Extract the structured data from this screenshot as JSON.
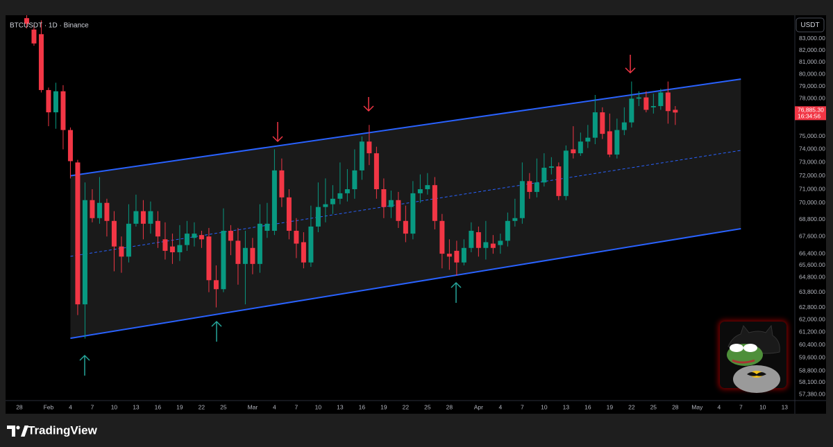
{
  "chart_data": {
    "type": "candlestick",
    "title": "BTCUSDT · 1D · Binance",
    "currency": "USDT",
    "log_scale": true,
    "grid": false,
    "up_color": "#089981",
    "down_color": "#f23645",
    "channel_color": "#2962ff",
    "last_price_label": "76,885.30",
    "countdown": "16:34:56",
    "x": [
      29,
      30,
      31,
      32,
      33,
      34,
      35,
      36,
      37,
      38,
      39,
      40,
      41,
      42,
      43,
      44,
      45,
      46,
      47,
      48,
      49,
      50,
      51,
      52,
      53,
      54,
      55,
      56,
      57,
      58,
      59,
      60,
      61,
      62,
      63,
      64,
      65,
      66,
      67,
      68,
      69,
      70,
      71,
      72,
      73,
      74,
      75,
      76,
      77,
      78,
      79,
      80,
      81,
      82,
      83,
      84,
      85,
      86,
      87,
      88,
      89,
      90,
      91,
      92,
      93,
      94,
      95,
      96,
      97,
      98,
      99,
      100,
      101,
      102,
      103,
      104,
      105,
      106,
      107,
      108,
      109,
      110,
      111,
      112,
      113,
      114,
      115,
      116,
      117,
      118
    ],
    "open": [
      84800,
      83800,
      83400,
      78700,
      76900,
      78600,
      75500,
      73000,
      63000,
      70200,
      68900,
      70000,
      68700,
      66900,
      66200,
      68500,
      69400,
      68500,
      68700,
      67400,
      66900,
      66500,
      67000,
      67500,
      67700,
      67600,
      64600,
      64000,
      68000,
      67300,
      65700,
      66800,
      65700,
      68000,
      68000,
      72400,
      70400,
      68000,
      67200,
      65800,
      68300,
      69700,
      69900,
      70300,
      70700,
      71000,
      72400,
      74600,
      73700,
      71000,
      69700,
      70200,
      68700,
      67800,
      70700,
      71000,
      71300,
      68700,
      66400,
      66600,
      65800,
      66800,
      67900,
      66800,
      67100,
      67000,
      67300,
      68700,
      68900,
      71600,
      70800,
      71500,
      72600,
      72700,
      70500,
      74000,
      73700,
      74600,
      74900,
      76900,
      75400,
      73600,
      75500,
      76100,
      78000,
      78100,
      77300,
      77400,
      78500,
      77100
    ],
    "high": [
      85500,
      84200,
      84600,
      78900,
      79300,
      79100,
      75700,
      73200,
      71500,
      71000,
      71900,
      70300,
      69400,
      67600,
      69900,
      70600,
      70200,
      70100,
      69400,
      68600,
      67800,
      68400,
      68700,
      68600,
      68000,
      68200,
      65600,
      69600,
      68400,
      68200,
      68000,
      67500,
      69900,
      70000,
      74000,
      73300,
      71000,
      68900,
      67900,
      69800,
      71500,
      71800,
      71300,
      73000,
      72500,
      74000,
      75000,
      75900,
      74200,
      71800,
      70900,
      70800,
      69800,
      71600,
      72100,
      72200,
      71900,
      69200,
      67400,
      67300,
      67400,
      68600,
      68300,
      68700,
      67700,
      67800,
      69300,
      70300,
      73000,
      72200,
      73300,
      73700,
      73400,
      73000,
      74300,
      75800,
      75300,
      75900,
      78300,
      77300,
      76800,
      76400,
      77300,
      79400,
      78600,
      78600,
      78400,
      78800,
      79400,
      77400
    ],
    "low": [
      83900,
      82400,
      78500,
      75800,
      75600,
      74000,
      71800,
      62300,
      60800,
      68600,
      68500,
      67600,
      65200,
      65100,
      65800,
      68300,
      67400,
      67800,
      66800,
      66000,
      65700,
      65900,
      66600,
      66900,
      66800,
      63800,
      62800,
      63800,
      66300,
      64300,
      63000,
      65000,
      65100,
      67500,
      67700,
      69700,
      67400,
      66100,
      65400,
      65500,
      67900,
      68600,
      69200,
      69900,
      70100,
      70300,
      71700,
      72800,
      70300,
      68900,
      68900,
      68200,
      67200,
      67400,
      70000,
      70600,
      68100,
      65400,
      65300,
      64900,
      65600,
      66500,
      66200,
      66000,
      66400,
      66400,
      66900,
      68300,
      68500,
      70300,
      70400,
      71200,
      72100,
      70200,
      70200,
      73300,
      73500,
      74100,
      74400,
      74800,
      73400,
      73300,
      75100,
      75700,
      77400,
      76900,
      76800,
      77100,
      76000,
      75900
    ],
    "close": [
      84300,
      82600,
      78700,
      76900,
      78600,
      75500,
      73100,
      63000,
      70200,
      68900,
      70000,
      68700,
      66900,
      66200,
      68500,
      69400,
      68500,
      69400,
      67600,
      66600,
      66500,
      67000,
      67800,
      67800,
      67400,
      64600,
      64000,
      68000,
      67300,
      65700,
      66800,
      65700,
      68500,
      68500,
      72400,
      70400,
      68000,
      67100,
      65800,
      68300,
      69700,
      69900,
      70300,
      70700,
      71000,
      72400,
      74600,
      73700,
      71000,
      69700,
      70200,
      68700,
      67800,
      70700,
      71000,
      71300,
      68700,
      66400,
      66200,
      65800,
      66800,
      68000,
      66800,
      67200,
      66800,
      67300,
      68700,
      68900,
      71600,
      70800,
      71500,
      72600,
      72700,
      70500,
      73900,
      73700,
      74600,
      74900,
      76900,
      75200,
      73600,
      75500,
      76100,
      78000,
      78100,
      77100,
      77400,
      78500,
      77000,
      76885.3
    ],
    "channel": {
      "upper": {
        "x": [
          35,
          127
        ],
        "y": [
          72000,
          79600
        ]
      },
      "middle": {
        "x": [
          35,
          127
        ],
        "y": [
          66220,
          73920
        ]
      },
      "lower": {
        "x": [
          35,
          127
        ],
        "y": [
          60820,
          68150
        ]
      }
    },
    "xlim": [
      26.1,
      134.4
    ],
    "xticks": [
      {
        "value": 28,
        "label": "28"
      },
      {
        "value": 32,
        "label": "Feb"
      },
      {
        "value": 35,
        "label": "4"
      },
      {
        "value": 38,
        "label": "7"
      },
      {
        "value": 41,
        "label": "10"
      },
      {
        "value": 44,
        "label": "13"
      },
      {
        "value": 47,
        "label": "16"
      },
      {
        "value": 50,
        "label": "19"
      },
      {
        "value": 53,
        "label": "22"
      },
      {
        "value": 56,
        "label": "25"
      },
      {
        "value": 60,
        "label": "Mar"
      },
      {
        "value": 63,
        "label": "4"
      },
      {
        "value": 66,
        "label": "7"
      },
      {
        "value": 69,
        "label": "10"
      },
      {
        "value": 72,
        "label": "13"
      },
      {
        "value": 75,
        "label": "16"
      },
      {
        "value": 78,
        "label": "19"
      },
      {
        "value": 81,
        "label": "22"
      },
      {
        "value": 84,
        "label": "25"
      },
      {
        "value": 87,
        "label": "28"
      },
      {
        "value": 91,
        "label": "Apr"
      },
      {
        "value": 94,
        "label": "4"
      },
      {
        "value": 97,
        "label": "7"
      },
      {
        "value": 100,
        "label": "10"
      },
      {
        "value": 103,
        "label": "13"
      },
      {
        "value": 106,
        "label": "16"
      },
      {
        "value": 109,
        "label": "19"
      },
      {
        "value": 112,
        "label": "22"
      },
      {
        "value": 115,
        "label": "25"
      },
      {
        "value": 118,
        "label": "28"
      },
      {
        "value": 121,
        "label": "May"
      },
      {
        "value": 124,
        "label": "4"
      },
      {
        "value": 127,
        "label": "7"
      },
      {
        "value": 130,
        "label": "10"
      },
      {
        "value": 133,
        "label": "13"
      }
    ],
    "ylim": [
      57010,
      85055
    ],
    "yticks": [
      {
        "value": 83000,
        "label": "83,000.00"
      },
      {
        "value": 82000,
        "label": "82,000.00"
      },
      {
        "value": 81000,
        "label": "81,000.00"
      },
      {
        "value": 80000,
        "label": "80,000.00"
      },
      {
        "value": 79000,
        "label": "79,000.00"
      },
      {
        "value": 78000,
        "label": "78,000.00"
      },
      {
        "value": 75000,
        "label": "75,000.00"
      },
      {
        "value": 74000,
        "label": "74,000.00"
      },
      {
        "value": 73000,
        "label": "73,000.00"
      },
      {
        "value": 72000,
        "label": "72,000.00"
      },
      {
        "value": 71000,
        "label": "71,000.00"
      },
      {
        "value": 70000,
        "label": "70,000.00"
      },
      {
        "value": 68800,
        "label": "68,800.00"
      },
      {
        "value": 67600,
        "label": "67,600.00"
      },
      {
        "value": 66400,
        "label": "66,400.00"
      },
      {
        "value": 65600,
        "label": "65,600.00"
      },
      {
        "value": 64800,
        "label": "64,800.00"
      },
      {
        "value": 63800,
        "label": "63,800.00"
      },
      {
        "value": 62800,
        "label": "62,800.00"
      },
      {
        "value": 62000,
        "label": "62,000.00"
      },
      {
        "value": 61200,
        "label": "61,200.00"
      },
      {
        "value": 60400,
        "label": "60,400.00"
      },
      {
        "value": 59600,
        "label": "59,600.00"
      },
      {
        "value": 58800,
        "label": "58,800.00"
      },
      {
        "value": 58100,
        "label": "58,100.00"
      },
      {
        "value": 57380,
        "label": "57,380.00"
      }
    ]
  },
  "brand": "TradingView"
}
